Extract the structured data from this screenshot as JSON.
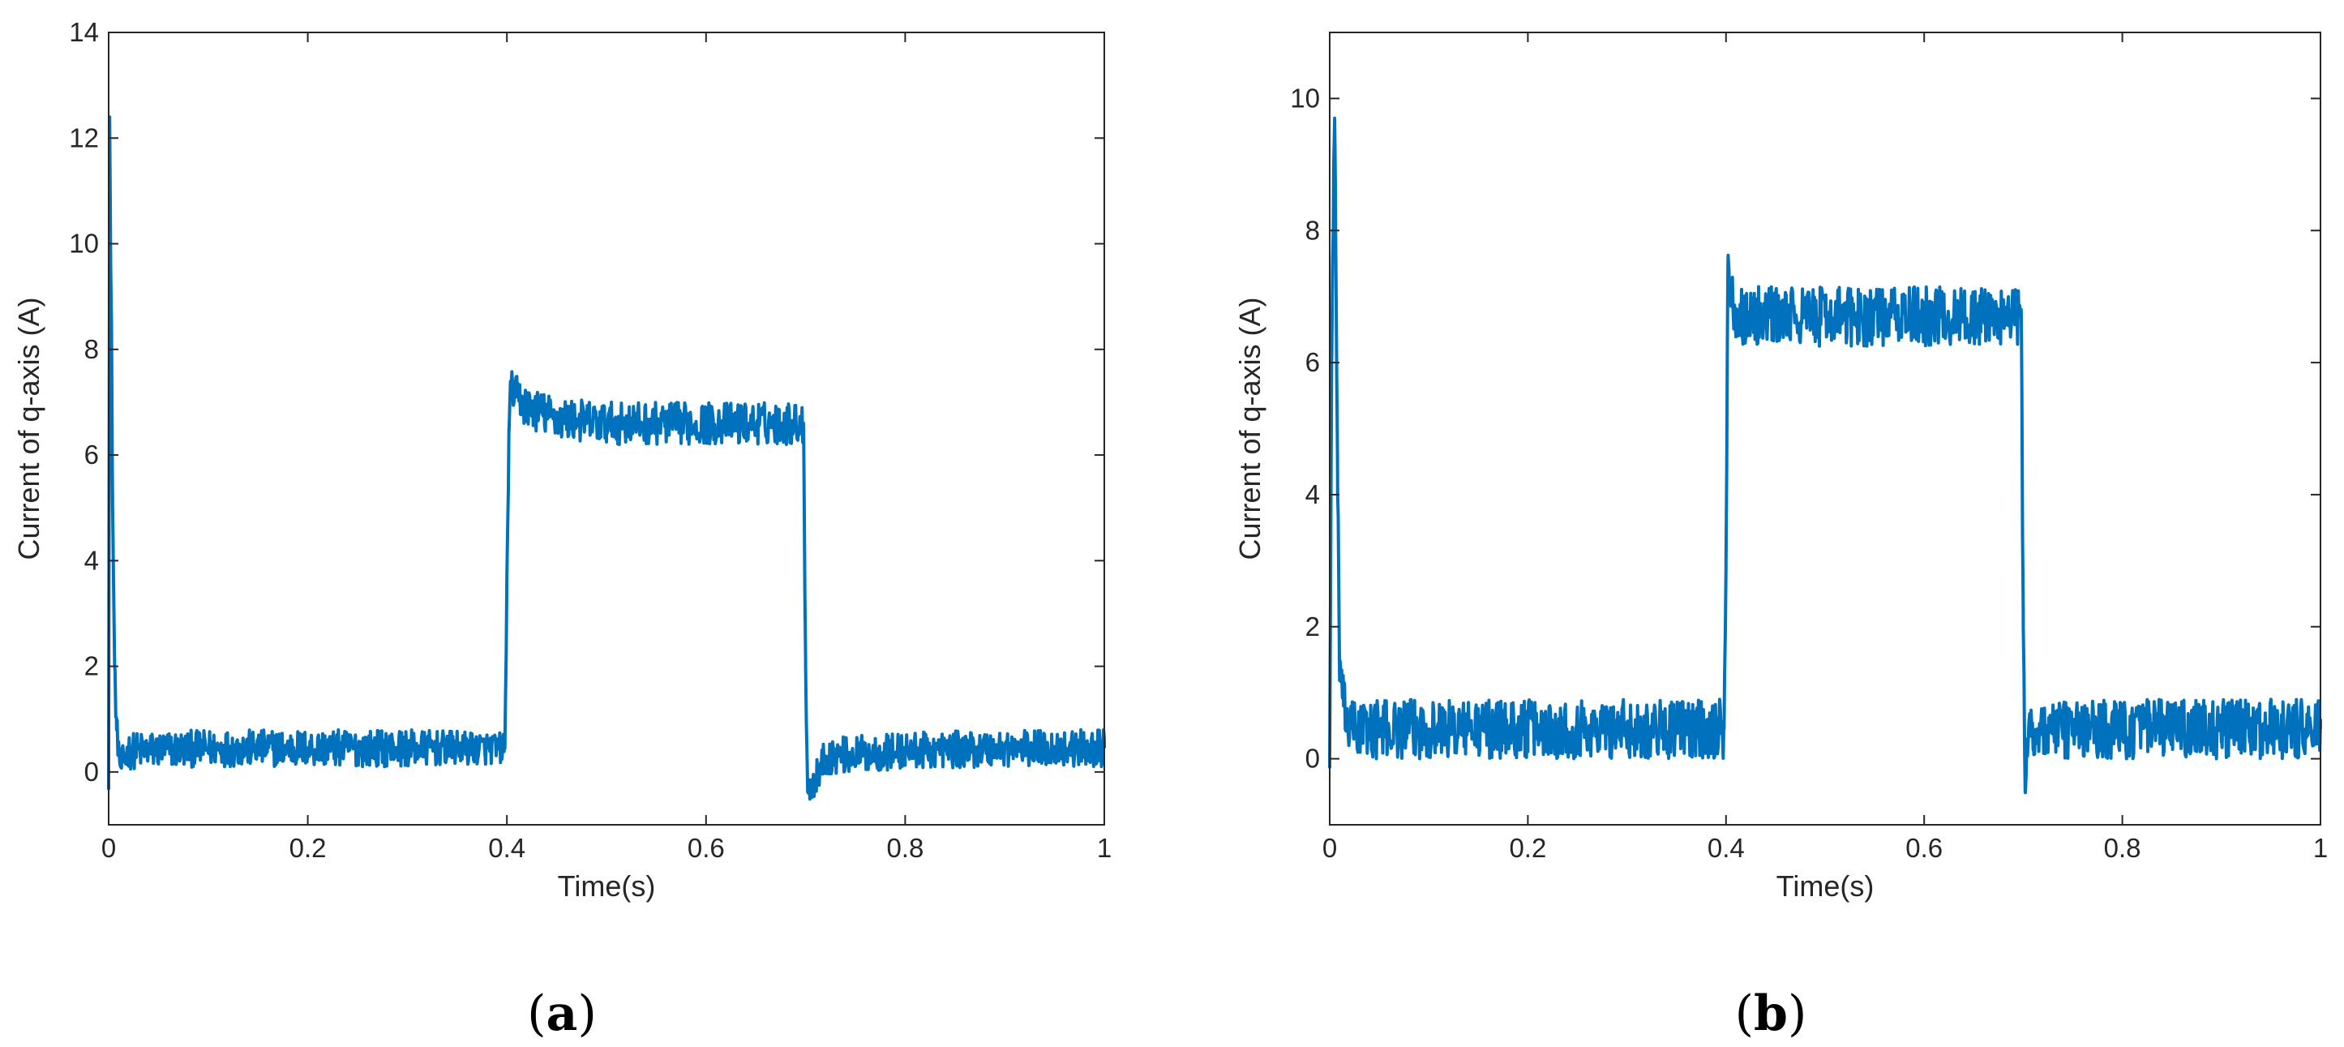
{
  "figure": {
    "panels": [
      {
        "label_open": "(",
        "label_letter": "a",
        "label_close": ")"
      },
      {
        "label_open": "(",
        "label_letter": "b",
        "label_close": ")"
      }
    ]
  },
  "colors": {
    "line": "#0072BD",
    "axes": "#262626",
    "background": "#ffffff"
  },
  "chart_data": [
    {
      "type": "line",
      "title": "",
      "xlabel": "Time(s)",
      "ylabel": "Current of q-axis (A)",
      "xlim": [
        0,
        1
      ],
      "ylim": [
        -1,
        14
      ],
      "xticks": [
        0,
        0.2,
        0.4,
        0.6,
        0.8,
        1
      ],
      "xtick_labels": [
        "0",
        "0.2",
        "0.4",
        "0.6",
        "0.8",
        "1"
      ],
      "yticks": [
        0,
        2,
        4,
        6,
        8,
        10,
        12,
        14
      ],
      "ytick_labels": [
        "0",
        "2",
        "4",
        "6",
        "8",
        "10",
        "12",
        "14"
      ],
      "grid": false,
      "series": [
        {
          "color": "#0072BD",
          "x": [
            0,
            0.001,
            0.002,
            0.003,
            0.004,
            0.006,
            0.008,
            0.012,
            0.02,
            0.1,
            0.2,
            0.3,
            0.398,
            0.402,
            0.404,
            0.41,
            0.42,
            0.45,
            0.5,
            0.6,
            0.698,
            0.7,
            0.702,
            0.706,
            0.72,
            0.8,
            0.9,
            1.0
          ],
          "y": [
            0,
            12.4,
            9.6,
            8.0,
            5.0,
            2.0,
            0.8,
            0.1,
            0.4,
            0.45,
            0.45,
            0.45,
            0.45,
            6.5,
            7.3,
            7.1,
            6.9,
            6.7,
            6.6,
            6.6,
            6.6,
            2.0,
            -0.3,
            -0.3,
            0.3,
            0.4,
            0.45,
            0.45
          ],
          "noise_band": [
            0.35,
            0.35,
            0.3,
            0.3,
            0.3,
            0.3,
            0.3,
            0.3,
            0.35,
            0.35,
            0.35,
            0.35,
            0.3,
            0.3,
            0.3,
            0.4,
            0.4,
            0.4,
            0.4,
            0.4,
            0.4,
            0.3,
            0.2,
            0.3,
            0.35,
            0.35,
            0.35,
            0.35
          ]
        }
      ]
    },
    {
      "type": "line",
      "title": "",
      "xlabel": "Time(s)",
      "ylabel": "Current of q-axis (A)",
      "xlim": [
        0,
        1
      ],
      "ylim": [
        -1,
        11
      ],
      "xticks": [
        0,
        0.2,
        0.4,
        0.6,
        0.8,
        1
      ],
      "xtick_labels": [
        "0",
        "0.2",
        "0.4",
        "0.6",
        "0.8",
        "1"
      ],
      "yticks": [
        0,
        2,
        4,
        6,
        8,
        10
      ],
      "ytick_labels": [
        "0",
        "2",
        "4",
        "6",
        "8",
        "10"
      ],
      "grid": false,
      "series": [
        {
          "color": "#0072BD",
          "x": [
            0,
            0.002,
            0.004,
            0.005,
            0.006,
            0.008,
            0.01,
            0.014,
            0.02,
            0.1,
            0.2,
            0.3,
            0.398,
            0.4,
            0.402,
            0.406,
            0.41,
            0.42,
            0.5,
            0.6,
            0.698,
            0.7,
            0.702,
            0.704,
            0.71,
            0.8,
            0.9,
            1.0
          ],
          "y": [
            0,
            6.0,
            9.0,
            9.7,
            8.0,
            4.0,
            1.5,
            0.8,
            0.45,
            0.45,
            0.45,
            0.45,
            0.45,
            3.0,
            7.5,
            7.0,
            6.8,
            6.7,
            6.7,
            6.7,
            6.7,
            2.0,
            -0.5,
            0.3,
            0.45,
            0.45,
            0.45,
            0.45
          ],
          "noise_band": [
            0.4,
            0.4,
            0.4,
            0.2,
            0.3,
            0.4,
            0.4,
            0.4,
            0.45,
            0.45,
            0.45,
            0.45,
            0.45,
            0.3,
            0.2,
            0.4,
            0.45,
            0.45,
            0.45,
            0.45,
            0.45,
            0.3,
            0.1,
            0.4,
            0.45,
            0.45,
            0.45,
            0.45
          ]
        }
      ]
    }
  ]
}
